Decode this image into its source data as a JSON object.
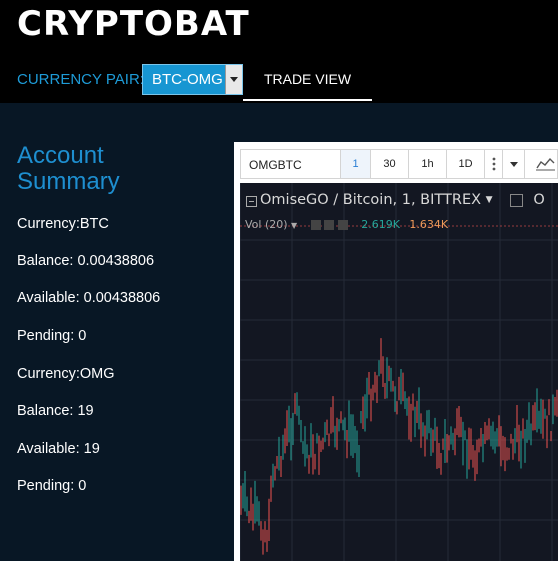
{
  "app": {
    "title": "CRYPTOBAT"
  },
  "header": {
    "currency_pair_label": "CURRENCY PAIR:",
    "currency_pair_value": "BTC-OMG",
    "tabs": [
      {
        "label": "TRADE VIEW",
        "active": true
      }
    ]
  },
  "account": {
    "title": "Account Summary",
    "lines": [
      "Currency:BTC",
      "Balance: 0.00438806",
      "Available: 0.00438806",
      "Pending: 0",
      "Currency:OMG",
      "Balance: 19",
      "Available: 19",
      "Pending: 0"
    ]
  },
  "chart_widget": {
    "symbol": "OMGBTC",
    "intervals": [
      "1",
      "30",
      "1h",
      "1D"
    ],
    "active_interval": "1",
    "legend": "OmiseGO / Bitcoin, 1, BITTREX",
    "legend_trailing": "O",
    "volume_label": "Vol (20)",
    "volume_values": [
      "2.619K",
      "1.634K"
    ],
    "colors": {
      "up": "#26a69a",
      "down": "#ef5350",
      "background": "#131722",
      "accent": "#1796d2"
    }
  }
}
